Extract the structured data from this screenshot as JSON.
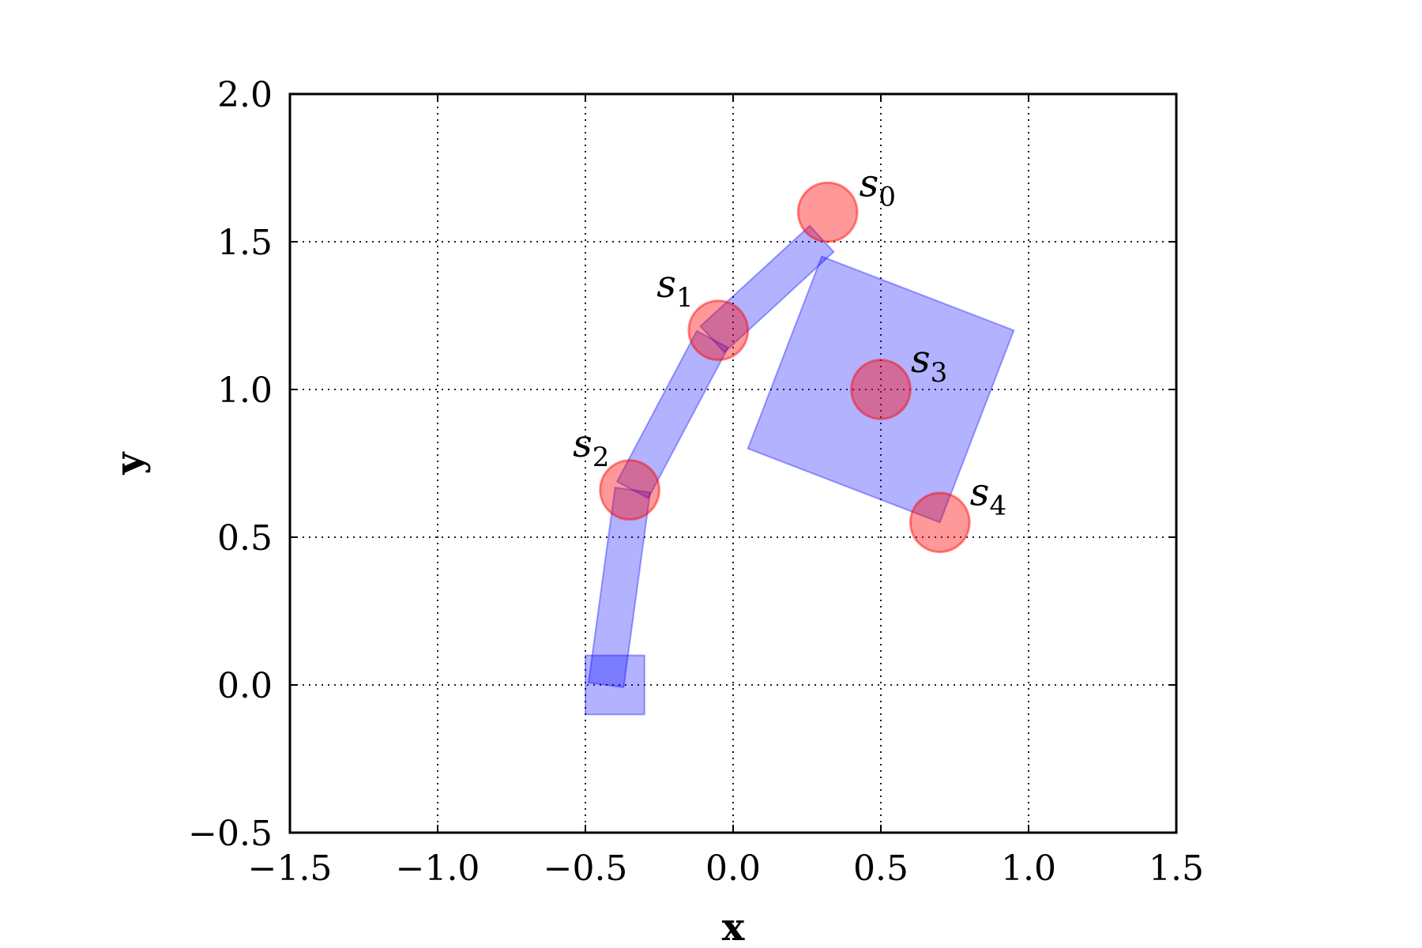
{
  "chart_data": {
    "type": "scatter",
    "title": "",
    "xlabel": "x",
    "ylabel": "y",
    "xlim": [
      -1.5,
      1.5
    ],
    "ylim": [
      -0.5,
      2.0
    ],
    "x_ticks": [
      -1.5,
      -1.0,
      -0.5,
      0.0,
      0.5,
      1.0,
      1.5
    ],
    "y_ticks": [
      -0.5,
      0.0,
      0.5,
      1.0,
      1.5,
      2.0
    ],
    "x_tick_labels": [
      "−1.5",
      "−1.0",
      "−0.5",
      "0.0",
      "0.5",
      "1.0",
      "1.5"
    ],
    "y_tick_labels": [
      "−0.5",
      "0.0",
      "0.5",
      "1.0",
      "1.5",
      "2.0"
    ],
    "grid": true,
    "colors": {
      "circles": "#ff0000",
      "arm": "#0000ff"
    },
    "points": [
      {
        "label": "s",
        "sub": "0",
        "x": 0.32,
        "y": 1.6,
        "radius": 0.1
      },
      {
        "label": "s",
        "sub": "1",
        "x": -0.05,
        "y": 1.2,
        "radius": 0.1
      },
      {
        "label": "s",
        "sub": "2",
        "x": -0.35,
        "y": 0.66,
        "radius": 0.1
      },
      {
        "label": "s",
        "sub": "3",
        "x": 0.5,
        "y": 1.0,
        "radius": 0.1
      },
      {
        "label": "s",
        "sub": "4",
        "x": 0.7,
        "y": 0.55,
        "radius": 0.1
      }
    ],
    "arm": {
      "base_square": {
        "cx": -0.4,
        "cy": 0.0,
        "size": 0.2
      },
      "segments": [
        {
          "from": [
            -0.43,
            0.0
          ],
          "to": [
            -0.34,
            0.66
          ],
          "width": 0.12
        },
        {
          "from": [
            -0.34,
            0.66
          ],
          "to": [
            -0.07,
            1.17
          ],
          "width": 0.12
        },
        {
          "from": [
            -0.07,
            1.17
          ],
          "to": [
            0.3,
            1.51
          ],
          "width": 0.12
        }
      ],
      "box": [
        [
          0.3,
          1.45
        ],
        [
          0.95,
          1.2
        ],
        [
          0.7,
          0.55
        ],
        [
          0.05,
          0.8
        ]
      ]
    }
  }
}
